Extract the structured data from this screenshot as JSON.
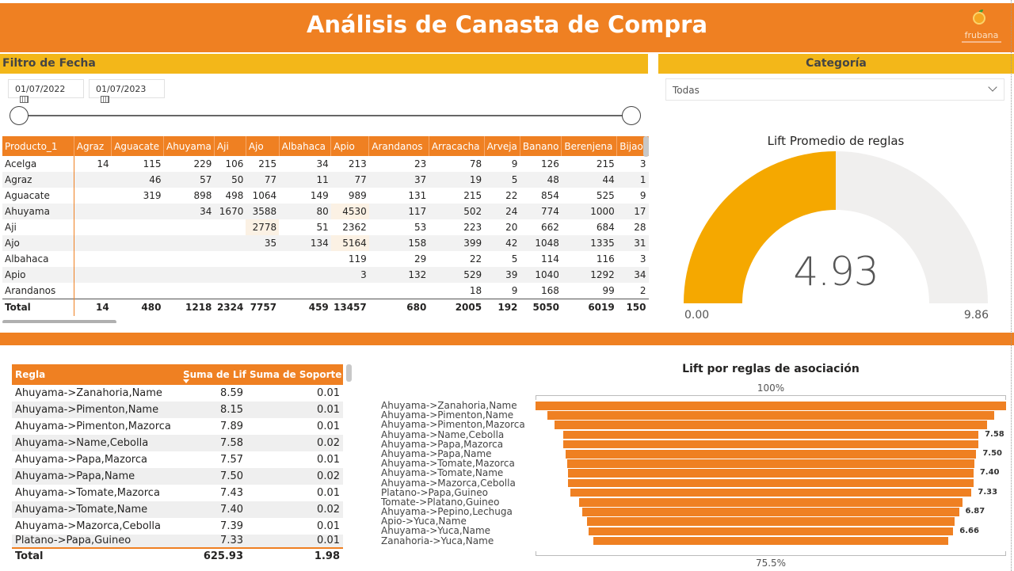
{
  "header": {
    "title": "Análisis de Canasta de Compra",
    "logo_text": "frubana"
  },
  "date_filter": {
    "title": "Filtro de Fecha",
    "start_date": "01/07/2022",
    "end_date": "01/07/2023"
  },
  "category_filter": {
    "title": "Categoría",
    "selected": "Todas"
  },
  "matrix": {
    "row_header": "Producto_1",
    "columns": [
      "Agraz",
      "Aguacate",
      "Ahuyama",
      "Aji",
      "Ajo",
      "Albahaca",
      "Apio",
      "Arandanos",
      "Arracacha",
      "Arveja",
      "Banano",
      "Berenjena",
      "Bijao"
    ],
    "rows": [
      {
        "label": "Acelga",
        "values": [
          "14",
          "115",
          "229",
          "106",
          "215",
          "34",
          "213",
          "23",
          "78",
          "9",
          "126",
          "215",
          "3"
        ]
      },
      {
        "label": "Agraz",
        "values": [
          "",
          "46",
          "57",
          "50",
          "77",
          "11",
          "77",
          "37",
          "19",
          "5",
          "48",
          "44",
          "1"
        ]
      },
      {
        "label": "Aguacate",
        "values": [
          "",
          "319",
          "898",
          "498",
          "1064",
          "149",
          "989",
          "131",
          "215",
          "22",
          "854",
          "525",
          "9"
        ]
      },
      {
        "label": "Ahuyama",
        "values": [
          "",
          "",
          "34",
          "1670",
          "3588",
          "80",
          "4530",
          "117",
          "502",
          "24",
          "774",
          "1000",
          "17"
        ]
      },
      {
        "label": "Aji",
        "values": [
          "",
          "",
          "",
          "",
          "2778",
          "51",
          "2362",
          "53",
          "223",
          "20",
          "662",
          "684",
          "28"
        ]
      },
      {
        "label": "Ajo",
        "values": [
          "",
          "",
          "",
          "",
          "35",
          "134",
          "5164",
          "158",
          "399",
          "42",
          "1048",
          "1335",
          "31"
        ]
      },
      {
        "label": "Albahaca",
        "values": [
          "",
          "",
          "",
          "",
          "",
          "",
          "119",
          "29",
          "22",
          "5",
          "114",
          "116",
          "3"
        ]
      },
      {
        "label": "Apio",
        "values": [
          "",
          "",
          "",
          "",
          "",
          "",
          "3",
          "132",
          "529",
          "39",
          "1040",
          "1292",
          "34"
        ]
      },
      {
        "label": "Arandanos",
        "values": [
          "",
          "",
          "",
          "",
          "",
          "",
          "",
          "",
          "18",
          "9",
          "168",
          "99",
          "2"
        ]
      }
    ],
    "total": {
      "label": "Total",
      "values": [
        "14",
        "480",
        "1218",
        "2324",
        "7757",
        "459",
        "13457",
        "680",
        "2005",
        "192",
        "5050",
        "6019",
        "150"
      ]
    }
  },
  "gauge": {
    "title": "Lift Promedio de reglas",
    "value": "4.93",
    "min": "0.00",
    "max": "9.86",
    "fill_fraction": 0.5
  },
  "rules_table": {
    "headers": {
      "rule": "Regla",
      "lift": "Suma de Lift",
      "support": "Suma de Soporte"
    },
    "rows": [
      {
        "rule": "Ahuyama->Zanahoria,Name",
        "lift": "8.59",
        "support": "0.01"
      },
      {
        "rule": "Ahuyama->Pimenton,Name",
        "lift": "8.15",
        "support": "0.01"
      },
      {
        "rule": "Ahuyama->Pimenton,Mazorca",
        "lift": "7.89",
        "support": "0.01"
      },
      {
        "rule": "Ahuyama->Name,Cebolla",
        "lift": "7.58",
        "support": "0.02"
      },
      {
        "rule": "Ahuyama->Papa,Mazorca",
        "lift": "7.57",
        "support": "0.01"
      },
      {
        "rule": "Ahuyama->Papa,Name",
        "lift": "7.50",
        "support": "0.02"
      },
      {
        "rule": "Ahuyama->Tomate,Mazorca",
        "lift": "7.43",
        "support": "0.01"
      },
      {
        "rule": "Ahuyama->Tomate,Name",
        "lift": "7.40",
        "support": "0.02"
      },
      {
        "rule": "Ahuyama->Mazorca,Cebolla",
        "lift": "7.39",
        "support": "0.01"
      },
      {
        "rule": "Platano->Papa,Guineo",
        "lift": "7.33",
        "support": "0.01"
      }
    ],
    "total": {
      "rule": "Total",
      "lift": "625.93",
      "support": "1.98"
    }
  },
  "chart_data": {
    "type": "funnel",
    "title": "Lift por reglas de asociación",
    "top_label": "100%",
    "bottom_label": "75.5%",
    "categories": [
      "Ahuyama->Zanahoria,Name",
      "Ahuyama->Pimenton,Name",
      "Ahuyama->Pimenton,Mazorca",
      "Ahuyama->Name,Cebolla",
      "Ahuyama->Papa,Mazorca",
      "Ahuyama->Papa,Name",
      "Ahuyama->Tomate,Mazorca",
      "Ahuyama->Tomate,Name",
      "Ahuyama->Mazorca,Cebolla",
      "Platano->Papa,Guineo",
      "Tomate->Platano,Guineo",
      "Ahuyama->Pepino,Lechuga",
      "Apio->Yuca,Name",
      "Ahuyama->Yuca,Name",
      "Zanahoria->Yuca,Name"
    ],
    "values": [
      8.59,
      8.15,
      7.89,
      7.58,
      7.57,
      7.5,
      7.43,
      7.4,
      7.39,
      7.33,
      7.0,
      6.87,
      6.7,
      6.66,
      6.49
    ],
    "data_labels": [
      "",
      "",
      "",
      "7.58",
      "",
      "7.50",
      "",
      "7.40",
      "",
      "7.33",
      "",
      "6.87",
      "",
      "6.66",
      ""
    ]
  }
}
